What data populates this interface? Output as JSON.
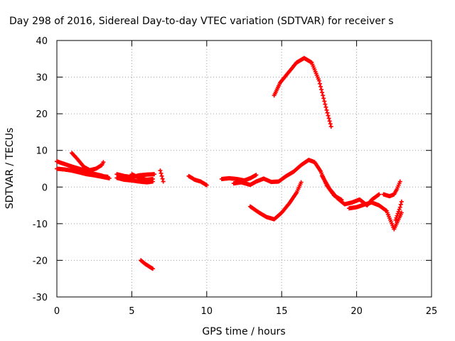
{
  "chart_data": {
    "type": "scatter",
    "title": "Day 298 of 2016, Sidereal Day-to-day VTEC variation (SDTVAR) for receiver s",
    "xlabel": "GPS time / hours",
    "ylabel": "SDTVAR / TECUs",
    "xlim": [
      0,
      25
    ],
    "ylim": [
      -30,
      40
    ],
    "xticks": [
      0,
      5,
      10,
      15,
      20,
      25
    ],
    "yticks": [
      -30,
      -20,
      -10,
      0,
      10,
      20,
      30,
      40
    ],
    "grid": true,
    "marker": "+",
    "color": "#ff0000",
    "series": [
      {
        "values": [
          [
            0,
            7
          ],
          [
            0.5,
            6.3
          ],
          [
            1,
            5.6
          ],
          [
            1.5,
            5
          ],
          [
            2,
            4.3
          ],
          [
            2.5,
            3.6
          ],
          [
            3,
            3.1
          ],
          [
            3.4,
            2.5
          ]
        ]
      },
      {
        "values": [
          [
            0,
            5
          ],
          [
            0.5,
            4.8
          ],
          [
            1,
            4.5
          ],
          [
            1.5,
            4
          ],
          [
            2,
            3.5
          ],
          [
            2.5,
            3.2
          ],
          [
            3,
            3
          ],
          [
            3.4,
            2.8
          ]
        ]
      },
      {
        "values": [
          [
            1,
            9.3
          ],
          [
            1.4,
            7.5
          ],
          [
            1.8,
            5.5
          ],
          [
            2.2,
            4.6
          ],
          [
            2.6,
            5
          ],
          [
            3,
            6
          ],
          [
            3.1,
            6.8
          ]
        ]
      },
      {
        "values": [
          [
            2,
            3.8
          ],
          [
            2.5,
            3.2
          ],
          [
            3,
            2.8
          ],
          [
            3.5,
            2.4
          ]
        ]
      },
      {
        "values": [
          [
            4,
            3.5
          ],
          [
            4.5,
            3
          ],
          [
            5,
            2.7
          ],
          [
            5.5,
            3.2
          ],
          [
            6,
            3.4
          ],
          [
            6.5,
            3.5
          ]
        ]
      },
      {
        "values": [
          [
            4,
            2.5
          ],
          [
            4.5,
            2
          ],
          [
            5,
            1.8
          ],
          [
            5.5,
            1.5
          ],
          [
            6,
            1.3
          ],
          [
            6.4,
            1.5
          ]
        ]
      },
      {
        "values": [
          [
            5,
            3.5
          ],
          [
            5.5,
            2.5
          ],
          [
            6,
            2
          ],
          [
            6.4,
            2.2
          ]
        ]
      },
      {
        "values": [
          [
            6.9,
            4.5
          ],
          [
            7,
            3
          ],
          [
            7.1,
            1.5
          ]
        ]
      },
      {
        "values": [
          [
            8.8,
            3
          ],
          [
            9.2,
            2
          ],
          [
            9.6,
            1.5
          ],
          [
            10,
            0.5
          ]
        ]
      },
      {
        "values": [
          [
            11,
            2.2
          ],
          [
            11.5,
            2.4
          ],
          [
            12,
            2.2
          ],
          [
            12.5,
            1.8
          ],
          [
            12.9,
            2.4
          ],
          [
            13.3,
            3.3
          ]
        ]
      },
      {
        "values": [
          [
            11.8,
            1
          ],
          [
            12.3,
            1.3
          ],
          [
            12.9,
            0.6
          ],
          [
            13.3,
            1.5
          ],
          [
            13.8,
            2.3
          ],
          [
            14.3,
            1.4
          ],
          [
            14.8,
            1.5
          ],
          [
            15.3,
            3
          ],
          [
            15.8,
            4.2
          ],
          [
            16.3,
            6
          ],
          [
            16.8,
            7.4
          ],
          [
            17.2,
            6.8
          ],
          [
            17.6,
            4.3
          ],
          [
            18,
            0.5
          ],
          [
            18.5,
            -2.3
          ],
          [
            19,
            -3.5
          ]
        ]
      },
      {
        "values": [
          [
            12.9,
            -5.3
          ],
          [
            13.5,
            -7
          ],
          [
            14,
            -8.2
          ],
          [
            14.5,
            -8.8
          ],
          [
            15,
            -7
          ],
          [
            15.5,
            -4.5
          ],
          [
            16,
            -1.5
          ],
          [
            16.3,
            1.3
          ]
        ]
      },
      {
        "values": [
          [
            14.5,
            25
          ],
          [
            14.9,
            28.5
          ],
          [
            15.5,
            31.5
          ],
          [
            16,
            34
          ],
          [
            16.5,
            35.2
          ],
          [
            17,
            34
          ],
          [
            17.5,
            29
          ],
          [
            18,
            21
          ],
          [
            18.3,
            16.5
          ]
        ]
      },
      {
        "values": [
          [
            17.7,
            3
          ],
          [
            18.2,
            -0.5
          ],
          [
            18.7,
            -3
          ],
          [
            19.2,
            -4.7
          ],
          [
            19.7,
            -4.2
          ],
          [
            20.2,
            -3.4
          ],
          [
            20.7,
            -5
          ],
          [
            21,
            -3.5
          ],
          [
            21.5,
            -2
          ]
        ]
      },
      {
        "values": [
          [
            19.5,
            -5.8
          ],
          [
            20,
            -5.5
          ],
          [
            20.5,
            -4.8
          ],
          [
            21,
            -4.2
          ],
          [
            21.5,
            -5
          ],
          [
            22,
            -6.5
          ],
          [
            22.5,
            -11.5
          ],
          [
            23,
            -7
          ]
        ]
      },
      {
        "values": [
          [
            21.8,
            -2
          ],
          [
            22.2,
            -2.5
          ],
          [
            22.5,
            -2
          ],
          [
            22.7,
            -0.5
          ],
          [
            22.9,
            1.5
          ]
        ]
      },
      {
        "values": [
          [
            22.6,
            -9
          ],
          [
            22.9,
            -5.5
          ],
          [
            23,
            -4
          ]
        ]
      },
      {
        "values": [
          [
            5.6,
            -20
          ],
          [
            5.9,
            -21
          ],
          [
            6.2,
            -21.8
          ],
          [
            6.4,
            -22.3
          ]
        ]
      }
    ]
  }
}
